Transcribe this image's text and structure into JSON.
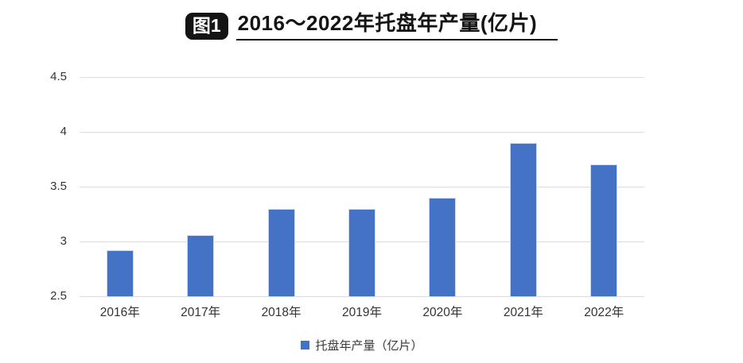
{
  "title": {
    "badge": "图1",
    "text": "2016～2022年托盘年产量(亿片)"
  },
  "legend": {
    "label": "托盘年产量（亿片）"
  },
  "colors": {
    "bar": "#4472c4",
    "bar_edge": "#ccd9f1",
    "gridline": "#dcdcdc",
    "axis_text": "#333333",
    "title_text": "#141414",
    "badge_background": "#141414",
    "badge_text": "#ffffff"
  },
  "chart_data": {
    "type": "bar",
    "title": "2016～2022年托盘年产量(亿片)",
    "categories": [
      "2016年",
      "2017年",
      "2018年",
      "2019年",
      "2020年",
      "2021年",
      "2022年"
    ],
    "series": [
      {
        "name": "托盘年产量（亿片）",
        "values": [
          2.92,
          3.06,
          3.3,
          3.3,
          3.4,
          3.9,
          3.7
        ]
      }
    ],
    "xlabel": "",
    "ylabel": "",
    "ylim": [
      2.5,
      4.5
    ],
    "yticks": [
      2.5,
      3,
      3.5,
      4,
      4.5
    ],
    "grid": true,
    "legend_position": "bottom"
  }
}
